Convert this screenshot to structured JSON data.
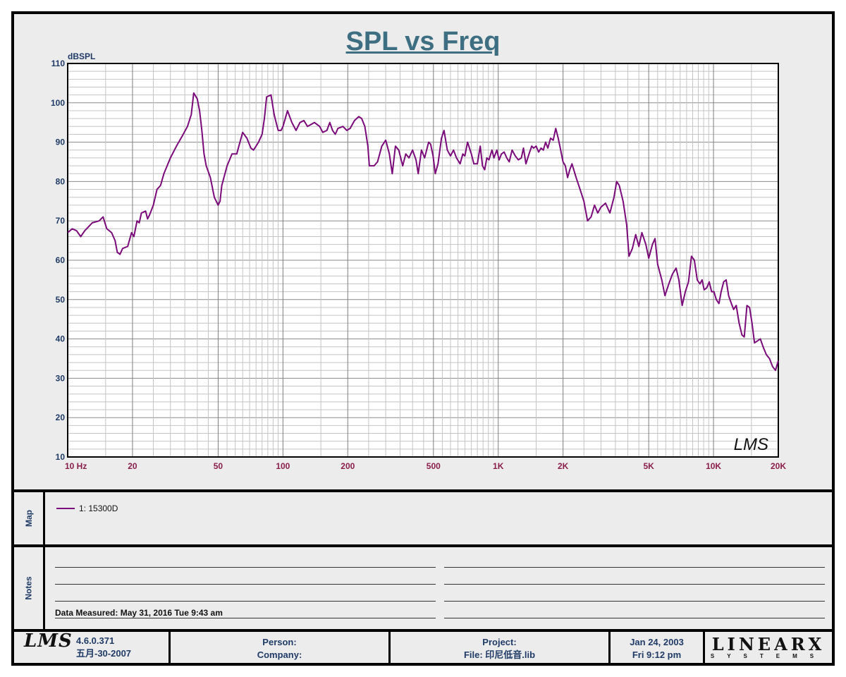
{
  "chart_data": {
    "type": "line",
    "title": "SPL vs Freq",
    "ylabel": "dBSPL",
    "xlabel": "",
    "x_scale": "log",
    "xlim": [
      10,
      20000
    ],
    "ylim": [
      10,
      110
    ],
    "yticks": [
      10,
      20,
      30,
      40,
      50,
      60,
      70,
      80,
      90,
      100,
      110
    ],
    "xticks": [
      {
        "value": 10,
        "label": "10  Hz"
      },
      {
        "value": 20,
        "label": "20"
      },
      {
        "value": 50,
        "label": "50"
      },
      {
        "value": 100,
        "label": "100"
      },
      {
        "value": 200,
        "label": "200"
      },
      {
        "value": 500,
        "label": "500"
      },
      {
        "value": 1000,
        "label": "1K"
      },
      {
        "value": 2000,
        "label": "2K"
      },
      {
        "value": 5000,
        "label": "5K"
      },
      {
        "value": 10000,
        "label": "10K"
      },
      {
        "value": 20000,
        "label": "20K"
      }
    ],
    "grid": true,
    "watermark": "LMS",
    "series": [
      {
        "name": "1: 15300D",
        "color": "#7a0a7a",
        "points": [
          [
            10,
            67
          ],
          [
            10.5,
            68
          ],
          [
            11,
            67.5
          ],
          [
            11.5,
            66
          ],
          [
            12,
            67.5
          ],
          [
            12.5,
            68.5
          ],
          [
            13,
            69.5
          ],
          [
            14,
            70
          ],
          [
            14.6,
            71
          ],
          [
            15.2,
            68
          ],
          [
            16,
            67
          ],
          [
            16.6,
            65
          ],
          [
            17,
            62
          ],
          [
            17.5,
            61.5
          ],
          [
            18,
            63
          ],
          [
            19,
            63.5
          ],
          [
            19.8,
            67
          ],
          [
            20.3,
            66
          ],
          [
            21,
            70
          ],
          [
            21.5,
            69.5
          ],
          [
            22,
            72
          ],
          [
            23,
            72.5
          ],
          [
            23.5,
            70.5
          ],
          [
            24,
            71.5
          ],
          [
            25,
            74
          ],
          [
            26,
            78
          ],
          [
            27,
            79
          ],
          [
            28,
            82
          ],
          [
            30,
            86
          ],
          [
            32,
            89
          ],
          [
            34,
            91.5
          ],
          [
            36,
            94
          ],
          [
            37.5,
            97
          ],
          [
            38.5,
            102.5
          ],
          [
            40,
            101
          ],
          [
            41,
            98
          ],
          [
            42,
            93
          ],
          [
            43,
            87
          ],
          [
            44,
            84
          ],
          [
            46,
            81
          ],
          [
            48,
            76
          ],
          [
            50,
            74
          ],
          [
            51,
            75
          ],
          [
            52,
            79
          ],
          [
            55,
            84
          ],
          [
            58,
            87
          ],
          [
            61,
            87
          ],
          [
            65,
            92.5
          ],
          [
            68,
            91
          ],
          [
            71,
            88.5
          ],
          [
            73,
            88
          ],
          [
            77,
            90
          ],
          [
            80,
            92
          ],
          [
            82,
            96
          ],
          [
            84,
            101.5
          ],
          [
            88,
            102
          ],
          [
            91,
            97
          ],
          [
            93,
            95
          ],
          [
            95,
            93
          ],
          [
            98,
            93
          ],
          [
            100,
            94
          ],
          [
            105,
            98
          ],
          [
            110,
            95
          ],
          [
            115,
            93
          ],
          [
            120,
            95
          ],
          [
            125,
            95.5
          ],
          [
            130,
            94
          ],
          [
            140,
            95
          ],
          [
            148,
            94
          ],
          [
            153,
            92.5
          ],
          [
            160,
            93
          ],
          [
            165,
            95
          ],
          [
            170,
            93
          ],
          [
            175,
            92
          ],
          [
            180,
            93.5
          ],
          [
            190,
            94
          ],
          [
            198,
            93
          ],
          [
            205,
            93.5
          ],
          [
            215,
            95.5
          ],
          [
            225,
            96.5
          ],
          [
            232,
            96
          ],
          [
            240,
            94
          ],
          [
            248,
            89
          ],
          [
            252,
            84
          ],
          [
            265,
            84
          ],
          [
            275,
            85
          ],
          [
            288,
            89
          ],
          [
            300,
            90.5
          ],
          [
            312,
            87
          ],
          [
            322,
            82
          ],
          [
            333,
            89
          ],
          [
            345,
            88
          ],
          [
            360,
            84
          ],
          [
            372,
            87
          ],
          [
            385,
            86
          ],
          [
            400,
            88
          ],
          [
            415,
            85.5
          ],
          [
            425,
            82
          ],
          [
            440,
            88
          ],
          [
            455,
            86
          ],
          [
            475,
            90
          ],
          [
            485,
            89.5
          ],
          [
            498,
            86.5
          ],
          [
            510,
            82
          ],
          [
            525,
            84.5
          ],
          [
            545,
            91
          ],
          [
            560,
            93
          ],
          [
            580,
            88
          ],
          [
            600,
            86.5
          ],
          [
            620,
            88
          ],
          [
            640,
            86
          ],
          [
            665,
            84.5
          ],
          [
            685,
            87
          ],
          [
            700,
            86.5
          ],
          [
            720,
            90
          ],
          [
            750,
            87
          ],
          [
            770,
            84.5
          ],
          [
            800,
            84.5
          ],
          [
            825,
            89
          ],
          [
            845,
            84
          ],
          [
            865,
            83
          ],
          [
            885,
            86
          ],
          [
            905,
            85.5
          ],
          [
            935,
            88
          ],
          [
            955,
            86
          ],
          [
            985,
            88
          ],
          [
            1010,
            85.5
          ],
          [
            1035,
            87
          ],
          [
            1065,
            87.5
          ],
          [
            1095,
            86
          ],
          [
            1125,
            85
          ],
          [
            1160,
            88
          ],
          [
            1200,
            86.5
          ],
          [
            1240,
            85.5
          ],
          [
            1280,
            86
          ],
          [
            1310,
            88.5
          ],
          [
            1345,
            84.5
          ],
          [
            1390,
            87
          ],
          [
            1430,
            89
          ],
          [
            1460,
            88.5
          ],
          [
            1500,
            89
          ],
          [
            1540,
            87.5
          ],
          [
            1580,
            88.5
          ],
          [
            1620,
            88
          ],
          [
            1660,
            90
          ],
          [
            1700,
            88.5
          ],
          [
            1750,
            91
          ],
          [
            1800,
            90.5
          ],
          [
            1850,
            93.5
          ],
          [
            1900,
            91
          ],
          [
            1950,
            88
          ],
          [
            2000,
            85
          ],
          [
            2050,
            84
          ],
          [
            2100,
            81
          ],
          [
            2150,
            83
          ],
          [
            2200,
            84.5
          ],
          [
            2300,
            81
          ],
          [
            2400,
            78
          ],
          [
            2500,
            75
          ],
          [
            2600,
            70
          ],
          [
            2700,
            71
          ],
          [
            2800,
            74
          ],
          [
            2900,
            72
          ],
          [
            3000,
            73.5
          ],
          [
            3150,
            74.5
          ],
          [
            3300,
            72
          ],
          [
            3450,
            76
          ],
          [
            3550,
            80
          ],
          [
            3650,
            79
          ],
          [
            3800,
            75
          ],
          [
            3950,
            69
          ],
          [
            4050,
            61
          ],
          [
            4200,
            63
          ],
          [
            4350,
            66.5
          ],
          [
            4500,
            63.5
          ],
          [
            4650,
            67
          ],
          [
            4850,
            64
          ],
          [
            5000,
            60.5
          ],
          [
            5200,
            64
          ],
          [
            5350,
            65.5
          ],
          [
            5500,
            59
          ],
          [
            5750,
            55
          ],
          [
            5950,
            51
          ],
          [
            6200,
            54
          ],
          [
            6450,
            56.5
          ],
          [
            6700,
            58
          ],
          [
            6900,
            55
          ],
          [
            7150,
            48.5
          ],
          [
            7400,
            52
          ],
          [
            7650,
            54.5
          ],
          [
            7900,
            61
          ],
          [
            8150,
            60
          ],
          [
            8400,
            55
          ],
          [
            8650,
            54
          ],
          [
            8850,
            55
          ],
          [
            9050,
            52.5
          ],
          [
            9300,
            53
          ],
          [
            9550,
            54.5
          ],
          [
            9800,
            52
          ],
          [
            10050,
            52
          ],
          [
            10300,
            50
          ],
          [
            10600,
            49
          ],
          [
            10850,
            52
          ],
          [
            11150,
            54.5
          ],
          [
            11450,
            55
          ],
          [
            11750,
            51
          ],
          [
            12100,
            49
          ],
          [
            12400,
            47.5
          ],
          [
            12750,
            48.5
          ],
          [
            13150,
            44
          ],
          [
            13550,
            41
          ],
          [
            13900,
            40.5
          ],
          [
            14300,
            48.5
          ],
          [
            14700,
            48
          ],
          [
            15100,
            44
          ],
          [
            15500,
            39
          ],
          [
            16000,
            39.5
          ],
          [
            16500,
            40
          ],
          [
            17000,
            38
          ],
          [
            17600,
            36
          ],
          [
            18200,
            35
          ],
          [
            18800,
            33
          ],
          [
            19400,
            32
          ],
          [
            20000,
            34.5
          ]
        ]
      }
    ]
  },
  "map": {
    "label": "Map",
    "legend": [
      {
        "label": "1: 15300D",
        "color": "#7a0a7a"
      }
    ]
  },
  "notes": {
    "label": "Notes",
    "measured": "Data Measured: May 31, 2016  Tue  9:43 am"
  },
  "footer": {
    "logo": "LMS",
    "version": "4.6.0.371",
    "build_date": "五月-30-2007",
    "person": "Person:",
    "company": "Company:",
    "project": "Project:",
    "file": "File: 印尼低音.lib",
    "date": "Jan 24, 2003",
    "time": "Fri  9:12 pm",
    "brand_big": "LINEARX",
    "brand_small": "SYSTEMS"
  }
}
